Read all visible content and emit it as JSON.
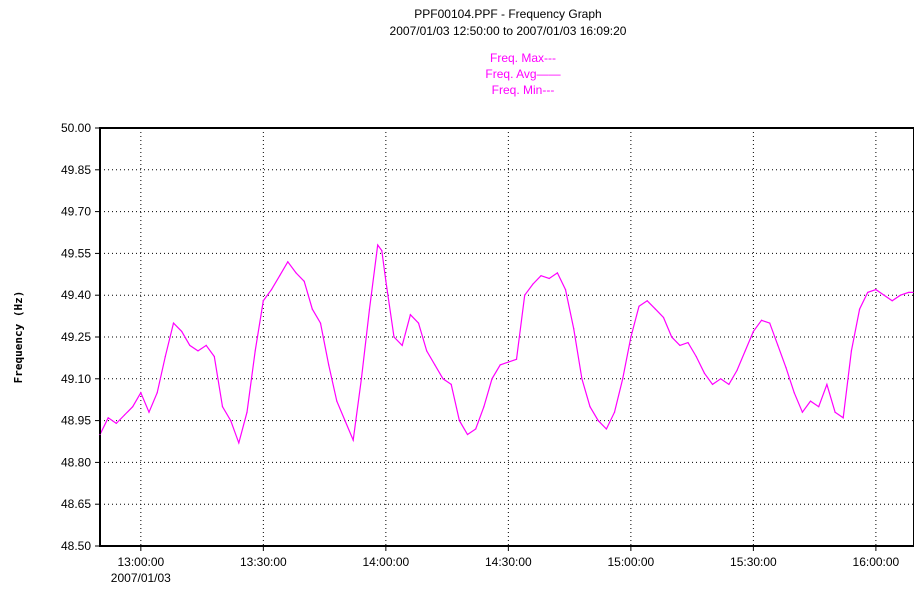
{
  "chart_data": {
    "type": "line",
    "title": "PPF00104.PPF - Frequency Graph",
    "subtitle": "2007/01/03 12:50:00 to 2007/01/03 16:09:20",
    "ylabel": "Frequency (Hz)",
    "xlabel": "",
    "date_label": "2007/01/03",
    "xlim": [
      "12:50:00",
      "16:09:20"
    ],
    "ylim": [
      48.5,
      50.0
    ],
    "grid": true,
    "legend": {
      "position": "top-center",
      "entries": [
        {
          "label": "Freq. Max",
          "marker": "---"
        },
        {
          "label": "Freq. Avg",
          "marker": "——"
        },
        {
          "label": "Freq. Min",
          "marker": "---"
        }
      ]
    },
    "y_ticks": [
      "50.00",
      "49.85",
      "49.70",
      "49.55",
      "49.40",
      "49.25",
      "49.10",
      "48.95",
      "48.80",
      "48.65",
      "48.50"
    ],
    "x_ticks": [
      "13:00:00",
      "13:30:00",
      "14:00:00",
      "14:30:00",
      "15:00:00",
      "15:30:00",
      "16:00:00"
    ],
    "colors": {
      "series": "#ff00ff",
      "axes": "#000000",
      "grid": "#000000"
    },
    "series": [
      {
        "name": "Freq. Avg",
        "x": [
          "12:50:00",
          "12:52:00",
          "12:54:00",
          "12:56:00",
          "12:58:00",
          "13:00:00",
          "13:02:00",
          "13:04:00",
          "13:06:00",
          "13:08:00",
          "13:10:00",
          "13:12:00",
          "13:14:00",
          "13:16:00",
          "13:18:00",
          "13:20:00",
          "13:22:00",
          "13:24:00",
          "13:26:00",
          "13:28:00",
          "13:30:00",
          "13:32:00",
          "13:34:00",
          "13:36:00",
          "13:38:00",
          "13:40:00",
          "13:42:00",
          "13:44:00",
          "13:46:00",
          "13:48:00",
          "13:50:00",
          "13:52:00",
          "13:54:00",
          "13:56:00",
          "13:58:00",
          "13:59:00",
          "14:00:00",
          "14:02:00",
          "14:04:00",
          "14:06:00",
          "14:08:00",
          "14:10:00",
          "14:12:00",
          "14:14:00",
          "14:16:00",
          "14:18:00",
          "14:20:00",
          "14:22:00",
          "14:24:00",
          "14:26:00",
          "14:28:00",
          "14:30:00",
          "14:32:00",
          "14:34:00",
          "14:36:00",
          "14:38:00",
          "14:40:00",
          "14:42:00",
          "14:44:00",
          "14:46:00",
          "14:48:00",
          "14:50:00",
          "14:52:00",
          "14:54:00",
          "14:56:00",
          "14:58:00",
          "15:00:00",
          "15:02:00",
          "15:04:00",
          "15:06:00",
          "15:08:00",
          "15:10:00",
          "15:12:00",
          "15:14:00",
          "15:16:00",
          "15:18:00",
          "15:20:00",
          "15:22:00",
          "15:24:00",
          "15:26:00",
          "15:28:00",
          "15:30:00",
          "15:32:00",
          "15:34:00",
          "15:36:00",
          "15:38:00",
          "15:40:00",
          "15:42:00",
          "15:44:00",
          "15:46:00",
          "15:48:00",
          "15:50:00",
          "15:52:00",
          "15:54:00",
          "15:56:00",
          "15:58:00",
          "16:00:00",
          "16:02:00",
          "16:04:00",
          "16:06:00",
          "16:08:00",
          "16:09:20"
        ],
        "y": [
          48.9,
          48.96,
          48.94,
          48.97,
          49.0,
          49.05,
          48.98,
          49.05,
          49.18,
          49.3,
          49.27,
          49.22,
          49.2,
          49.22,
          49.18,
          49.0,
          48.95,
          48.87,
          48.98,
          49.2,
          49.38,
          49.42,
          49.47,
          49.52,
          49.48,
          49.45,
          49.35,
          49.3,
          49.15,
          49.02,
          48.95,
          48.88,
          49.1,
          49.35,
          49.58,
          49.56,
          49.45,
          49.25,
          49.22,
          49.33,
          49.3,
          49.2,
          49.15,
          49.1,
          49.08,
          48.95,
          48.9,
          48.92,
          49.0,
          49.1,
          49.15,
          49.16,
          49.17,
          49.4,
          49.44,
          49.47,
          49.46,
          49.48,
          49.42,
          49.28,
          49.1,
          49.0,
          48.95,
          48.92,
          48.98,
          49.1,
          49.25,
          49.36,
          49.38,
          49.35,
          49.32,
          49.25,
          49.22,
          49.23,
          49.18,
          49.12,
          49.08,
          49.1,
          49.08,
          49.13,
          49.2,
          49.27,
          49.31,
          49.3,
          49.22,
          49.14,
          49.05,
          48.98,
          49.02,
          49.0,
          49.08,
          48.98,
          48.96,
          49.2,
          49.35,
          49.41,
          49.42,
          49.4,
          49.38,
          49.4,
          49.41,
          49.41
        ]
      }
    ]
  }
}
